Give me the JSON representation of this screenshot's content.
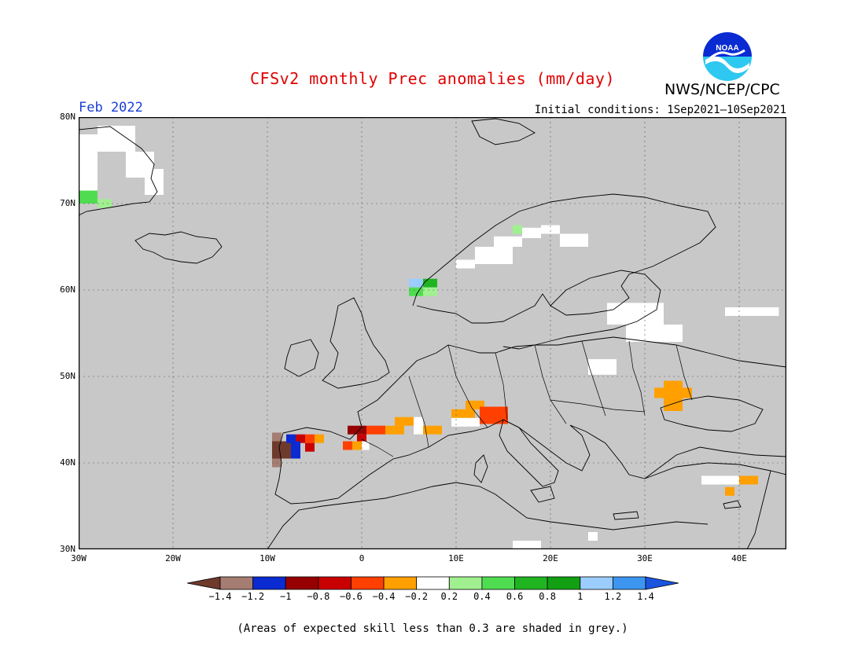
{
  "title": "CFSv2 monthly Prec anomalies (mm/day)",
  "agency": "NWS/NCEP/CPC",
  "logo_text": "NOAA",
  "month_label": "Feb 2022",
  "initial_conditions": "Initial conditions: 1Sep2021—10Sep2021",
  "footnote": "(Areas of expected skill less than 0.3 are shaded in grey.)",
  "map": {
    "projection": "lat-lon",
    "lon_range": [
      -30,
      45
    ],
    "lat_range": [
      30,
      80
    ],
    "background_color": "#c8c8c8",
    "grid": true,
    "lat_labels": [
      "80N",
      "70N",
      "60N",
      "50N",
      "40N",
      "30N"
    ],
    "lon_labels": [
      "30W",
      "20W",
      "10W",
      "0",
      "10E",
      "20E",
      "30E",
      "40E"
    ]
  },
  "colorbar": {
    "tick_labels": [
      "−1.4",
      "−1.2",
      "−1",
      "−0.8",
      "−0.6",
      "−0.4",
      "−0.2",
      "0.2",
      "0.4",
      "0.6",
      "0.8",
      "1",
      "1.2",
      "1.4"
    ],
    "colors": [
      "#6e3a2c",
      "#a57d72",
      "#0a2bd2",
      "#960000",
      "#c80000",
      "#ff4000",
      "#ffa000",
      "#ffffff",
      "#a0f090",
      "#50dc50",
      "#20b420",
      "#12a012",
      "#9ccdff",
      "#3c96f0",
      "#1a55e0"
    ]
  },
  "anomaly_cells": [
    {
      "lon": -28,
      "lat": 76,
      "w": 4,
      "h": 3,
      "color": "#ffffff"
    },
    {
      "lon": -25,
      "lat": 73,
      "w": 3,
      "h": 3,
      "color": "#ffffff"
    },
    {
      "lon": -23,
      "lat": 71,
      "w": 2,
      "h": 3,
      "color": "#ffffff"
    },
    {
      "lon": -30,
      "lat": 71,
      "w": 2,
      "h": 7,
      "color": "#ffffff"
    },
    {
      "lon": -30,
      "lat": 70,
      "w": 2,
      "h": 1.5,
      "color": "#50dc50"
    },
    {
      "lon": -28,
      "lat": 69.5,
      "w": 1.5,
      "h": 1,
      "color": "#a0f090"
    },
    {
      "lon": 17,
      "lat": 66,
      "w": 2,
      "h": 1.2,
      "color": "#ffffff"
    },
    {
      "lon": 19,
      "lat": 66.5,
      "w": 2,
      "h": 1,
      "color": "#ffffff"
    },
    {
      "lon": 21,
      "lat": 65,
      "w": 3,
      "h": 1.5,
      "color": "#ffffff"
    },
    {
      "lon": 14,
      "lat": 65,
      "w": 3,
      "h": 1.2,
      "color": "#ffffff"
    },
    {
      "lon": 12,
      "lat": 63,
      "w": 4,
      "h": 2,
      "color": "#ffffff"
    },
    {
      "lon": 10,
      "lat": 62.5,
      "w": 2,
      "h": 1,
      "color": "#ffffff"
    },
    {
      "lon": 16,
      "lat": 66.5,
      "w": 1,
      "h": 1,
      "color": "#a0f090"
    },
    {
      "lon": 5,
      "lat": 60.3,
      "w": 1.5,
      "h": 1,
      "color": "#9ccdff"
    },
    {
      "lon": 6.5,
      "lat": 60.3,
      "w": 1.5,
      "h": 1,
      "color": "#20b420"
    },
    {
      "lon": 5,
      "lat": 59.3,
      "w": 1.5,
      "h": 1,
      "color": "#50dc50"
    },
    {
      "lon": 6.5,
      "lat": 59.3,
      "w": 1.5,
      "h": 1,
      "color": "#a0f090"
    },
    {
      "lon": 26,
      "lat": 56,
      "w": 6,
      "h": 2.5,
      "color": "#ffffff"
    },
    {
      "lon": 28,
      "lat": 54,
      "w": 6,
      "h": 2,
      "color": "#ffffff"
    },
    {
      "lon": 38.5,
      "lat": 57,
      "w": 5.7,
      "h": 1,
      "color": "#ffffff"
    },
    {
      "lon": 24,
      "lat": 50.2,
      "w": 3,
      "h": 1.8,
      "color": "#ffffff"
    },
    {
      "lon": 31,
      "lat": 47.5,
      "w": 4,
      "h": 1.2,
      "color": "#ffa000"
    },
    {
      "lon": 32,
      "lat": 46,
      "w": 2,
      "h": 3.5,
      "color": "#ffa000"
    },
    {
      "lon": -9.5,
      "lat": 42.5,
      "w": 1,
      "h": 1,
      "color": "#a57d72"
    },
    {
      "lon": -9.5,
      "lat": 40.5,
      "w": 2,
      "h": 2,
      "color": "#6e3a2c"
    },
    {
      "lon": -9.5,
      "lat": 39.5,
      "w": 1,
      "h": 1,
      "color": "#a57d72"
    },
    {
      "lon": -8,
      "lat": 42.3,
      "w": 1,
      "h": 1,
      "color": "#0a2bd2"
    },
    {
      "lon": -7,
      "lat": 42.3,
      "w": 1,
      "h": 1,
      "color": "#c80000"
    },
    {
      "lon": -6,
      "lat": 42.3,
      "w": 1,
      "h": 1,
      "color": "#ff4000"
    },
    {
      "lon": -5,
      "lat": 42.3,
      "w": 1,
      "h": 1,
      "color": "#ffa000"
    },
    {
      "lon": -7.5,
      "lat": 40.5,
      "w": 1,
      "h": 2,
      "color": "#0a2bd2"
    },
    {
      "lon": -6,
      "lat": 41.3,
      "w": 1,
      "h": 1,
      "color": "#c80000"
    },
    {
      "lon": -1.5,
      "lat": 43.3,
      "w": 2,
      "h": 1,
      "color": "#960000"
    },
    {
      "lon": 0.5,
      "lat": 43.3,
      "w": 2,
      "h": 1,
      "color": "#ff4000"
    },
    {
      "lon": -0.5,
      "lat": 42.3,
      "w": 1,
      "h": 1,
      "color": "#c80000"
    },
    {
      "lon": 2.5,
      "lat": 43.3,
      "w": 2,
      "h": 1,
      "color": "#ffa000"
    },
    {
      "lon": 3.5,
      "lat": 44.3,
      "w": 2,
      "h": 1,
      "color": "#ffa000"
    },
    {
      "lon": 5.5,
      "lat": 43.3,
      "w": 1,
      "h": 2,
      "color": "#ffffff"
    },
    {
      "lon": 6.5,
      "lat": 43.3,
      "w": 2,
      "h": 1,
      "color": "#ffa000"
    },
    {
      "lon": -2,
      "lat": 41.5,
      "w": 1,
      "h": 1,
      "color": "#ff4000"
    },
    {
      "lon": -1,
      "lat": 41.5,
      "w": 1,
      "h": 1,
      "color": "#ffa000"
    },
    {
      "lon": 0,
      "lat": 41.5,
      "w": 0.8,
      "h": 1,
      "color": "#ffffff"
    },
    {
      "lon": 11,
      "lat": 46.2,
      "w": 2,
      "h": 1,
      "color": "#ffa000"
    },
    {
      "lon": 9.5,
      "lat": 45.2,
      "w": 2.5,
      "h": 1,
      "color": "#ffa000"
    },
    {
      "lon": 12.5,
      "lat": 44.5,
      "w": 3,
      "h": 2,
      "color": "#ff4000"
    },
    {
      "lon": 11,
      "lat": 44.2,
      "w": 1.5,
      "h": 1,
      "color": "#ffffff"
    },
    {
      "lon": 9.5,
      "lat": 44.2,
      "w": 1.5,
      "h": 1,
      "color": "#ffffff"
    },
    {
      "lon": 36,
      "lat": 37.5,
      "w": 4,
      "h": 1,
      "color": "#ffffff"
    },
    {
      "lon": 40,
      "lat": 37.5,
      "w": 2,
      "h": 1,
      "color": "#ffa000"
    },
    {
      "lon": 38.5,
      "lat": 36.2,
      "w": 1,
      "h": 1,
      "color": "#ffa000"
    },
    {
      "lon": 16,
      "lat": 30,
      "w": 3,
      "h": 1,
      "color": "#ffffff"
    },
    {
      "lon": 24,
      "lat": 31,
      "w": 1,
      "h": 1,
      "color": "#ffffff"
    }
  ]
}
